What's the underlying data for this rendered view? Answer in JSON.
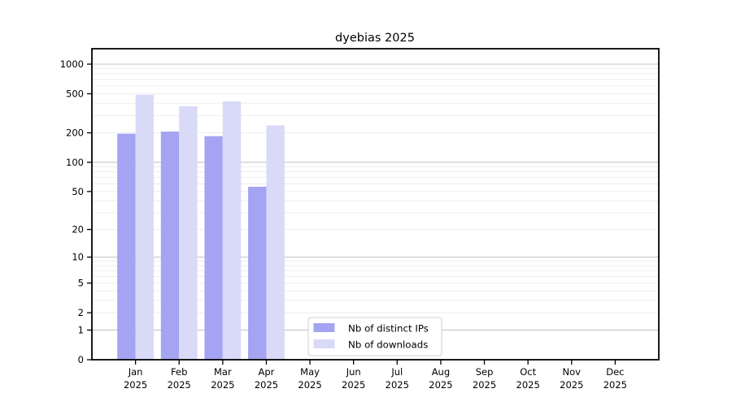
{
  "chart_data": {
    "type": "bar",
    "title": "dyebias 2025",
    "x": {
      "categories": [
        "Jan",
        "Feb",
        "Mar",
        "Apr",
        "May",
        "Jun",
        "Jul",
        "Aug",
        "Sep",
        "Oct",
        "Nov",
        "Dec"
      ],
      "year": "2025"
    },
    "series": [
      {
        "name": "Nb of distinct IPs",
        "color": "#a4a4f2",
        "values": [
          196,
          206,
          185,
          56,
          null,
          null,
          null,
          null,
          null,
          null,
          null,
          null
        ]
      },
      {
        "name": "Nb of downloads",
        "color": "#d9d9f8",
        "values": [
          488,
          373,
          418,
          238,
          null,
          null,
          null,
          null,
          null,
          null,
          null,
          null
        ]
      }
    ],
    "y_axis": {
      "scale": "log10(value+1)",
      "ticks": [
        0,
        1,
        2,
        5,
        10,
        20,
        50,
        100,
        200,
        500,
        1000
      ],
      "major_gridlines": [
        1,
        10,
        100,
        1000
      ],
      "range": [
        0,
        1000
      ]
    },
    "grid": true,
    "legend": {
      "position": "bottom-center"
    }
  },
  "style": {
    "bar_color_ips": "#a4a4f2",
    "bar_color_downloads": "#d9d9f8",
    "major_grid_color": "#c4c4c4",
    "minor_grid_color": "#ededed",
    "axis_color": "#000000",
    "legend_border_color": "#d2d2d2",
    "background": "#ffffff"
  }
}
